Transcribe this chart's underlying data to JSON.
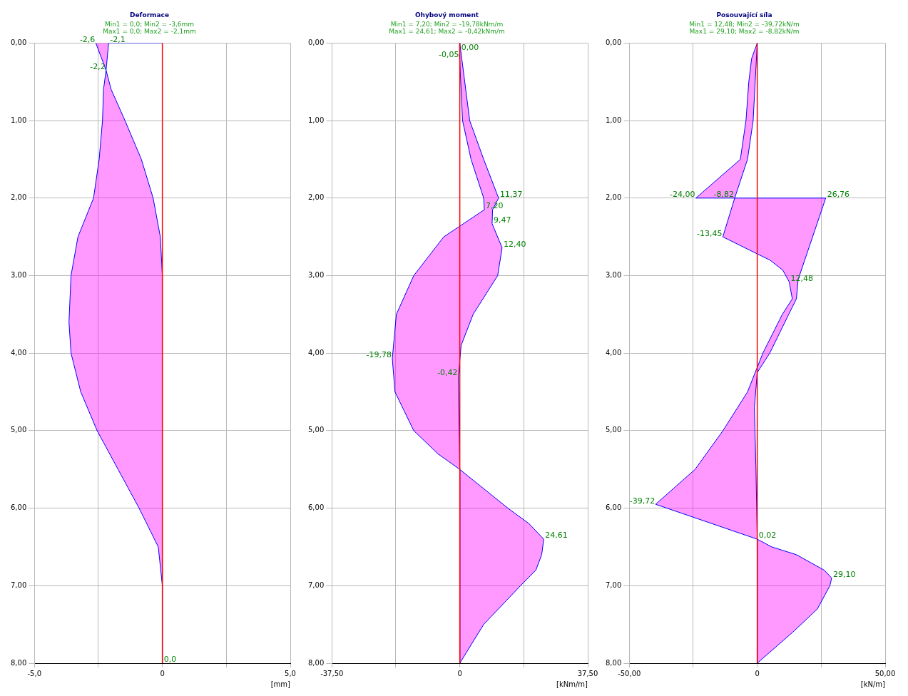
{
  "chart_data": [
    {
      "type": "area",
      "title": "Deformace",
      "subtitle": "Min1 = 0,0; Min2 = -3,6mm\nMax1 = 0,0; Max2 = -2,1mm",
      "xlabel": "[mm]",
      "series": [
        {
          "color": "#0000ff",
          "x": [
            -2.6,
            -2.2,
            -2.3,
            -2.34,
            -2.47,
            -2.69,
            -3.3,
            -3.57,
            -3.65,
            -3.57,
            -3.19,
            -2.55,
            -1.73,
            -0.91,
            -0.16,
            0,
            0,
            0,
            -0.08,
            -0.36,
            -0.82,
            -1.46,
            -2.0,
            -2.2,
            -2.1,
            0
          ],
          "values": [
            0,
            0.35,
            0.6,
            1.0,
            1.5,
            2.0,
            2.5,
            3.0,
            3.6,
            4.0,
            4.5,
            5.0,
            5.5,
            6.0,
            6.5,
            7.0,
            8.0,
            3.0,
            2.5,
            2.0,
            1.5,
            1.0,
            0.6,
            0.35,
            0,
            0
          ]
        }
      ],
      "xlim": [
        -5,
        5
      ],
      "xticks": [
        {
          "value": -5,
          "label": "-5,0"
        },
        {
          "value": -2.5,
          "label": null
        },
        {
          "value": 0,
          "label": "0"
        },
        {
          "value": 2.5,
          "label": null
        },
        {
          "value": 5,
          "label": "5,0"
        }
      ],
      "ylim": [
        8,
        0
      ],
      "yticks": [
        {
          "value": 0,
          "label": "0,00"
        },
        {
          "value": 1,
          "label": "1,00"
        },
        {
          "value": 2,
          "label": "2,00"
        },
        {
          "value": 3,
          "label": "3,00"
        },
        {
          "value": 4,
          "label": "4,00"
        },
        {
          "value": 5,
          "label": "5,00"
        },
        {
          "value": 6,
          "label": "6,00"
        },
        {
          "value": 7,
          "label": "7,00"
        },
        {
          "value": 8,
          "label": "8,00"
        }
      ],
      "grid": true,
      "legend": false,
      "ref_lines": [
        {
          "axis": "x",
          "value": 0,
          "color": "#ff0000"
        }
      ],
      "annotations": [
        {
          "text": "-2,6",
          "x": -2.6,
          "y": 0
        },
        {
          "text": "-2,1",
          "x": -2.1,
          "y": 0
        },
        {
          "text": "-2,2",
          "x": -2.2,
          "y": 0.35
        },
        {
          "text": "0,0",
          "x": 0,
          "y": 8
        }
      ]
    },
    {
      "type": "area",
      "title": "Ohybový moment",
      "subtitle": "Min1 = 7,20; Min2 = -19,78kNm/m\nMax1 = 24,61; Max2 = -0,42kNm/m",
      "xlabel": "[kNm/m]",
      "series": [
        {
          "color": "#0000ff",
          "x": [
            0,
            -0.05,
            0.8,
            3.3,
            7.0,
            7.2,
            -4.7,
            -13.5,
            -18.6,
            -19.78,
            -19.0,
            -13.5,
            -6.4,
            0,
            0,
            7.0,
            17.8,
            22.3,
            24.0,
            24.61,
            20.3,
            14.1,
            0,
            -0.2,
            -0.42,
            0.4,
            3.9,
            11.1,
            12.4,
            9.47,
            9.6,
            11.37,
            7.0,
            2.9,
            0
          ],
          "values": [
            0,
            0.2,
            1.0,
            1.5,
            2.0,
            2.15,
            2.5,
            3.0,
            3.5,
            4.07,
            4.5,
            5.0,
            5.3,
            5.5,
            8.0,
            7.5,
            7.0,
            6.8,
            6.6,
            6.4,
            6.2,
            6.0,
            5.5,
            5.0,
            4.3,
            3.9,
            3.5,
            3.0,
            2.64,
            2.33,
            2.15,
            2.0,
            1.5,
            1.0,
            0
          ]
        }
      ],
      "xlim": [
        -37.5,
        37.5
      ],
      "xticks": [
        {
          "value": -37.5,
          "label": "-37,50"
        },
        {
          "value": -18.75,
          "label": null
        },
        {
          "value": 0,
          "label": "0"
        },
        {
          "value": 18.75,
          "label": null
        },
        {
          "value": 37.5,
          "label": "37,50"
        }
      ],
      "ylim": [
        8,
        0
      ],
      "yticks": [
        {
          "value": 0,
          "label": "0,00"
        },
        {
          "value": 1,
          "label": "1,00"
        },
        {
          "value": 2,
          "label": "2,00"
        },
        {
          "value": 3,
          "label": "3,00"
        },
        {
          "value": 4,
          "label": "4,00"
        },
        {
          "value": 5,
          "label": "5,00"
        },
        {
          "value": 6,
          "label": "6,00"
        },
        {
          "value": 7,
          "label": "7,00"
        },
        {
          "value": 8,
          "label": "8,00"
        }
      ],
      "grid": true,
      "legend": false,
      "ref_lines": [
        {
          "axis": "x",
          "value": 0,
          "color": "#ff0000"
        }
      ],
      "annotations": [
        {
          "text": "0,00",
          "x": 0,
          "y": 0.1
        },
        {
          "text": "-0,05",
          "x": -0.05,
          "y": 0.2
        },
        {
          "text": "11,37",
          "x": 11.37,
          "y": 2.0
        },
        {
          "text": "7,20",
          "x": 7.2,
          "y": 2.15
        },
        {
          "text": "9,47",
          "x": 9.47,
          "y": 2.33
        },
        {
          "text": "12,40",
          "x": 12.4,
          "y": 2.64
        },
        {
          "text": "-19,78",
          "x": -19.78,
          "y": 4.07
        },
        {
          "text": "-0,42",
          "x": -0.42,
          "y": 4.3
        },
        {
          "text": "24,61",
          "x": 24.61,
          "y": 6.4
        }
      ]
    },
    {
      "type": "area",
      "title": "Posouvající síla",
      "subtitle": "Min1 = 12,48; Min2 = -39,72kN/m\nMax1 = 29,10; Max2 = -8,82kN/m",
      "xlabel": "[kN/m]",
      "series": [
        {
          "color": "#0000ff",
          "x": [
            0,
            -2.2,
            -3.3,
            -4.4,
            -6.6,
            -24.0,
            -8.82,
            -13.45,
            0,
            5,
            10,
            12.48,
            13.7,
            9.8,
            2.2,
            -3.8,
            -13.4,
            -24.3,
            -39.72,
            0,
            0,
            13.9,
            23.5,
            28.4,
            29.1,
            26.2,
            15.3,
            5.7,
            0,
            -0.5,
            -1.1,
            0,
            4.9,
            12.3,
            15.3,
            16,
            26.76,
            -8.82,
            -3.8,
            -1.6,
            0
          ],
          "values": [
            0,
            0.2,
            0.5,
            1.0,
            1.5,
            2.0,
            2.0,
            2.5,
            2.72,
            2.8,
            2.93,
            3.08,
            3.3,
            3.5,
            4.0,
            4.5,
            5.0,
            5.5,
            5.95,
            6.4,
            8.0,
            7.6,
            7.3,
            7.0,
            6.9,
            6.8,
            6.6,
            6.5,
            6.4,
            5.5,
            4.7,
            4.25,
            4.0,
            3.5,
            3.3,
            3.05,
            2.0,
            2.0,
            1.5,
            1.0,
            0
          ]
        }
      ],
      "xlim": [
        -50,
        50
      ],
      "xticks": [
        {
          "value": -50,
          "label": "-50,00"
        },
        {
          "value": -25,
          "label": null
        },
        {
          "value": 0,
          "label": "0"
        },
        {
          "value": 25,
          "label": null
        },
        {
          "value": 50,
          "label": "50,00"
        }
      ],
      "ylim": [
        8,
        0
      ],
      "yticks": [
        {
          "value": 0,
          "label": "0,00"
        },
        {
          "value": 1,
          "label": "1,00"
        },
        {
          "value": 2,
          "label": "2,00"
        },
        {
          "value": 3,
          "label": "3,00"
        },
        {
          "value": 4,
          "label": "4,00"
        },
        {
          "value": 5,
          "label": "5,00"
        },
        {
          "value": 6,
          "label": "6,00"
        },
        {
          "value": 7,
          "label": "7,00"
        },
        {
          "value": 8,
          "label": "8,00"
        }
      ],
      "grid": true,
      "legend": false,
      "ref_lines": [
        {
          "axis": "x",
          "value": 0,
          "color": "#ff0000"
        }
      ],
      "annotations": [
        {
          "text": "-24,00",
          "x": -24.0,
          "y": 2.0
        },
        {
          "text": "-8,82",
          "x": -8.82,
          "y": 2.0
        },
        {
          "text": "26,76",
          "x": 26.76,
          "y": 2.0
        },
        {
          "text": "-13,45",
          "x": -13.45,
          "y": 2.5
        },
        {
          "text": "12,48",
          "x": 12.48,
          "y": 3.08
        },
        {
          "text": "-39,72",
          "x": -39.72,
          "y": 5.95
        },
        {
          "text": "0,02",
          "x": 0,
          "y": 6.4
        },
        {
          "text": "29,10",
          "x": 29.1,
          "y": 6.9
        }
      ]
    }
  ]
}
